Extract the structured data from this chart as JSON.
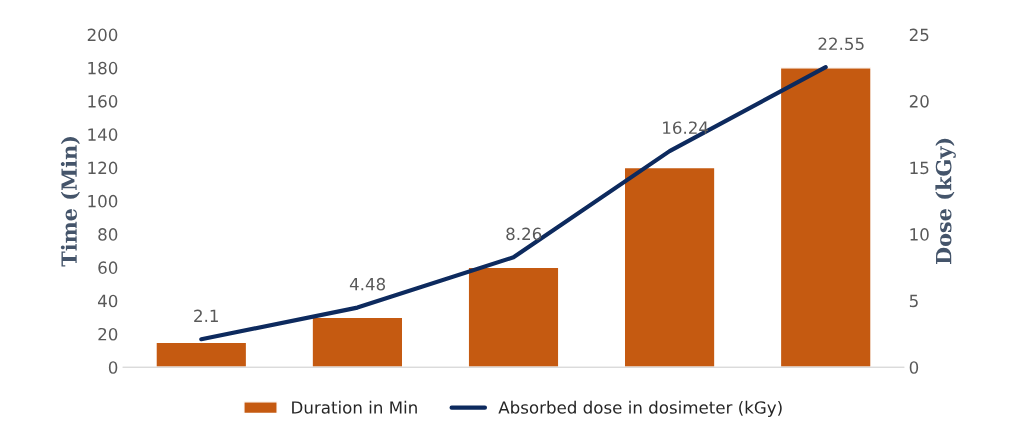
{
  "chart_data": {
    "type": "bar",
    "categories": [
      null,
      null,
      null,
      null,
      null
    ],
    "series": [
      {
        "name": "Duration in Min",
        "color": "#c55a11",
        "values": [
          15,
          30,
          60,
          120,
          180
        ]
      },
      {
        "name": "Absorbed dose in dosimeter (kGy)",
        "type": "line",
        "axis": "y2",
        "color": "#0d2a5e",
        "values": [
          2.1,
          4.48,
          8.26,
          16.24,
          22.55
        ],
        "value_labels": [
          "2.1",
          "4.48",
          "8.26",
          "16.24",
          "22.55"
        ]
      }
    ],
    "ylabel": "Time (Min)",
    "y2label": "Dose (kGy)",
    "ylim": [
      0,
      200
    ],
    "yticks": [
      0,
      20,
      40,
      60,
      80,
      100,
      120,
      140,
      160,
      180,
      200
    ],
    "y2lim": [
      0,
      25
    ],
    "y2ticks": [
      0,
      5,
      10,
      15,
      20,
      25
    ],
    "grid": false,
    "legend": "bottom",
    "marker": "none",
    "line_style": "solid"
  }
}
